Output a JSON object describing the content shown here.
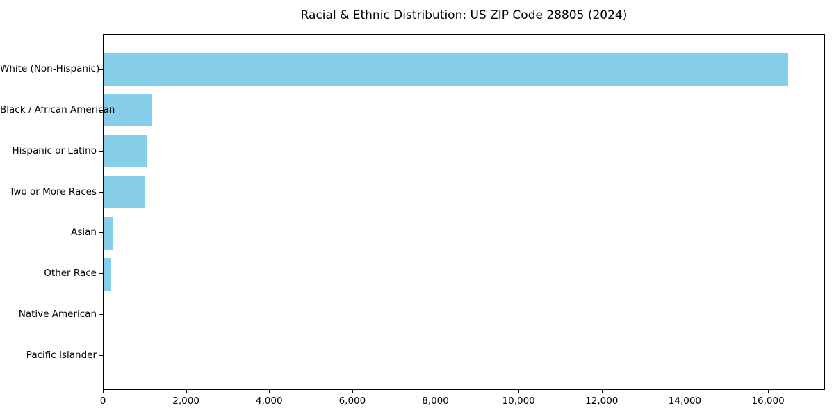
{
  "figure": {
    "background": "#ffffff",
    "text_color": "#000000",
    "spine_color": "#000000"
  },
  "chart_data": {
    "type": "bar",
    "orientation": "horizontal",
    "title": "Racial & Ethnic Distribution: US ZIP Code 28805 (2024)",
    "categories": [
      "White (Non-Hispanic)",
      "Black / African American",
      "Hispanic or Latino",
      "Two or More Races",
      "Asian",
      "Other Race",
      "Native American",
      "Pacific Islander"
    ],
    "values": [
      16500,
      1175,
      1060,
      1000,
      225,
      160,
      0,
      0
    ],
    "xlabel": "",
    "ylabel": "",
    "xlim": [
      0,
      17370
    ],
    "x_ticks": [
      0,
      2000,
      4000,
      6000,
      8000,
      10000,
      12000,
      14000,
      16000
    ],
    "x_tick_labels": [
      "0",
      "2,000",
      "4,000",
      "6,000",
      "8,000",
      "10,000",
      "12,000",
      "14,000",
      "16,000"
    ],
    "bar_color": "#87CEEB",
    "grid": false,
    "legend": false
  }
}
